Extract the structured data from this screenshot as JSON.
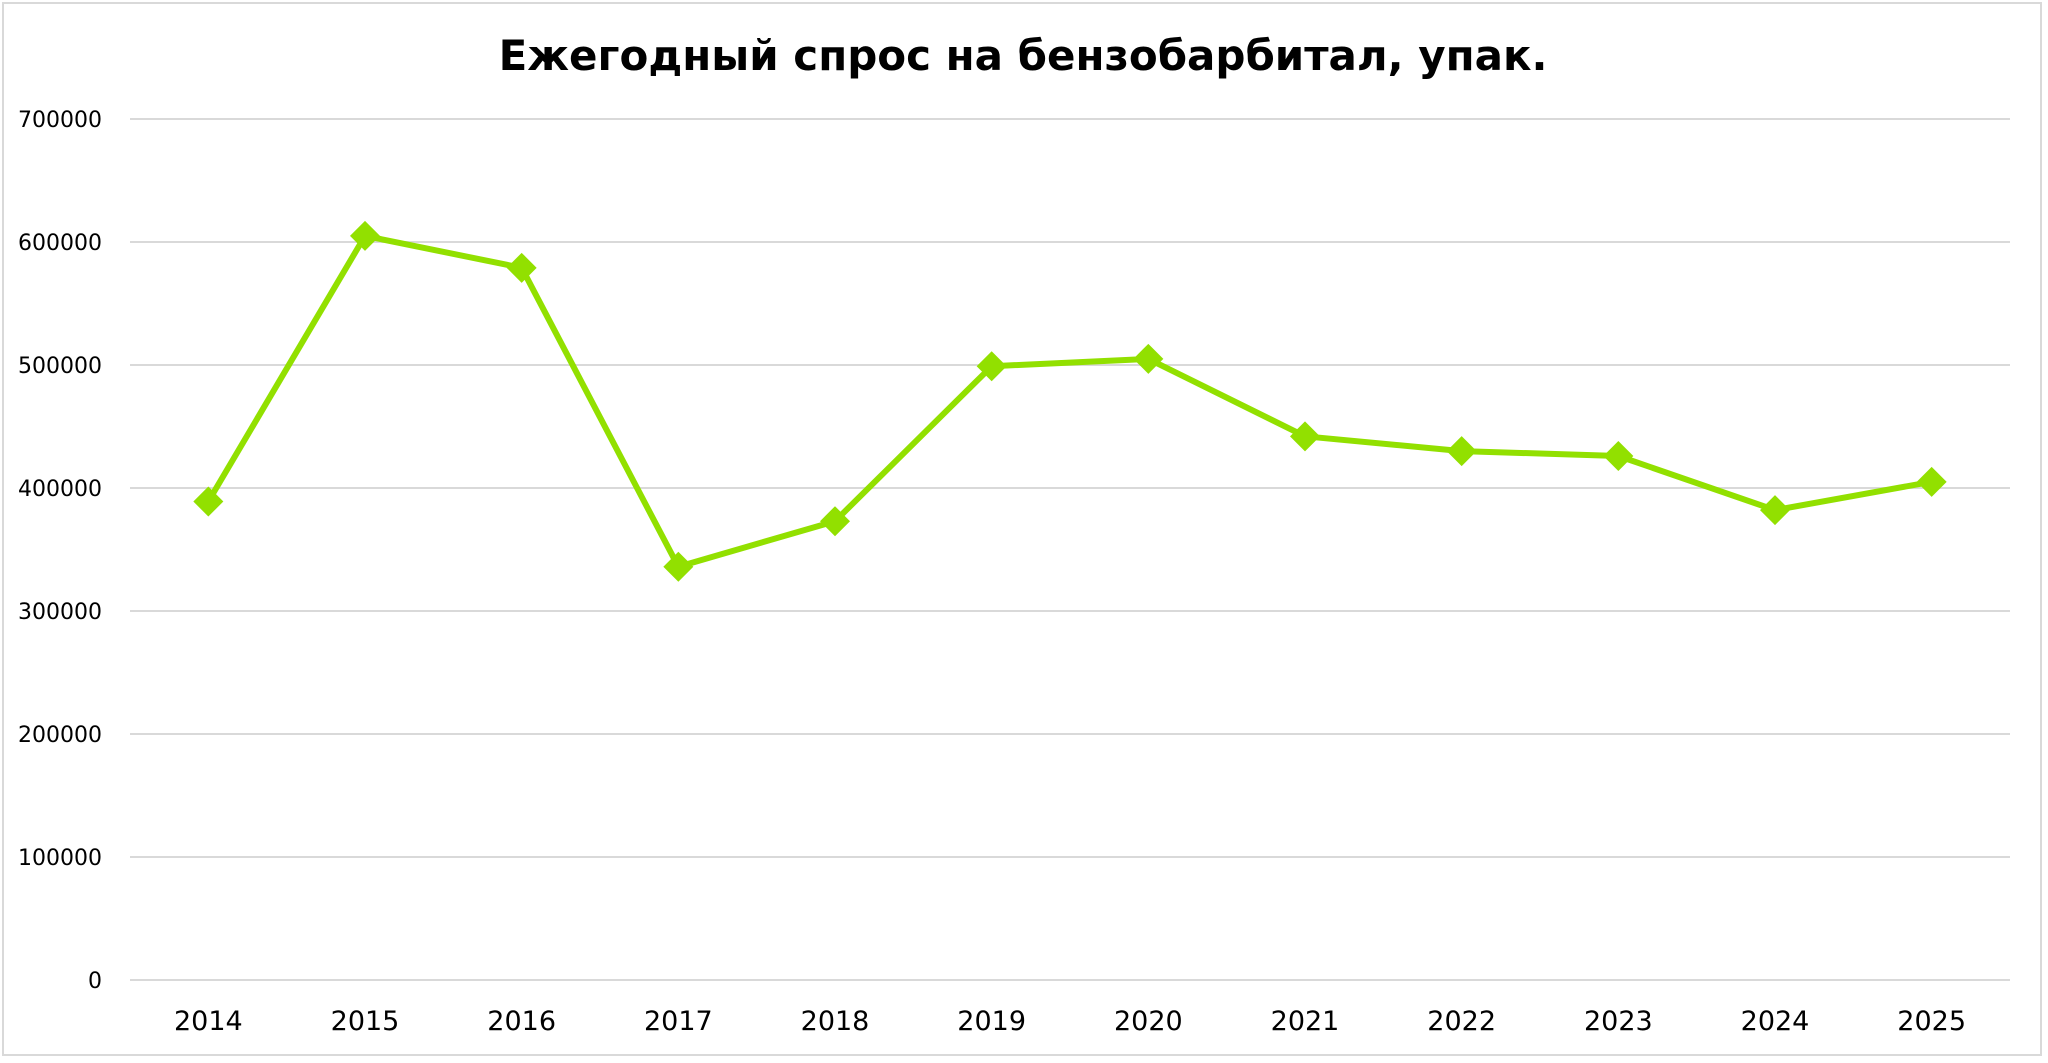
{
  "chart_data": {
    "type": "line",
    "title": "Ежегодный спрос на бензобарбитал, упак.",
    "xlabel": "",
    "ylabel": "",
    "categories": [
      "2014",
      "2015",
      "2016",
      "2017",
      "2018",
      "2019",
      "2020",
      "2021",
      "2022",
      "2023",
      "2024",
      "2025"
    ],
    "series": [
      {
        "values": [
          389000,
          605000,
          579000,
          336000,
          373000,
          499000,
          505000,
          442000,
          430000,
          426000,
          382000,
          405000
        ],
        "color": "#92e000",
        "marker": "diamond"
      }
    ],
    "ylim": [
      0,
      700000
    ],
    "yticks": [
      "0",
      "100000",
      "200000",
      "300000",
      "400000",
      "500000",
      "600000",
      "700000"
    ],
    "grid": true,
    "legend": "none",
    "gridColor": "#d9d9d9"
  }
}
